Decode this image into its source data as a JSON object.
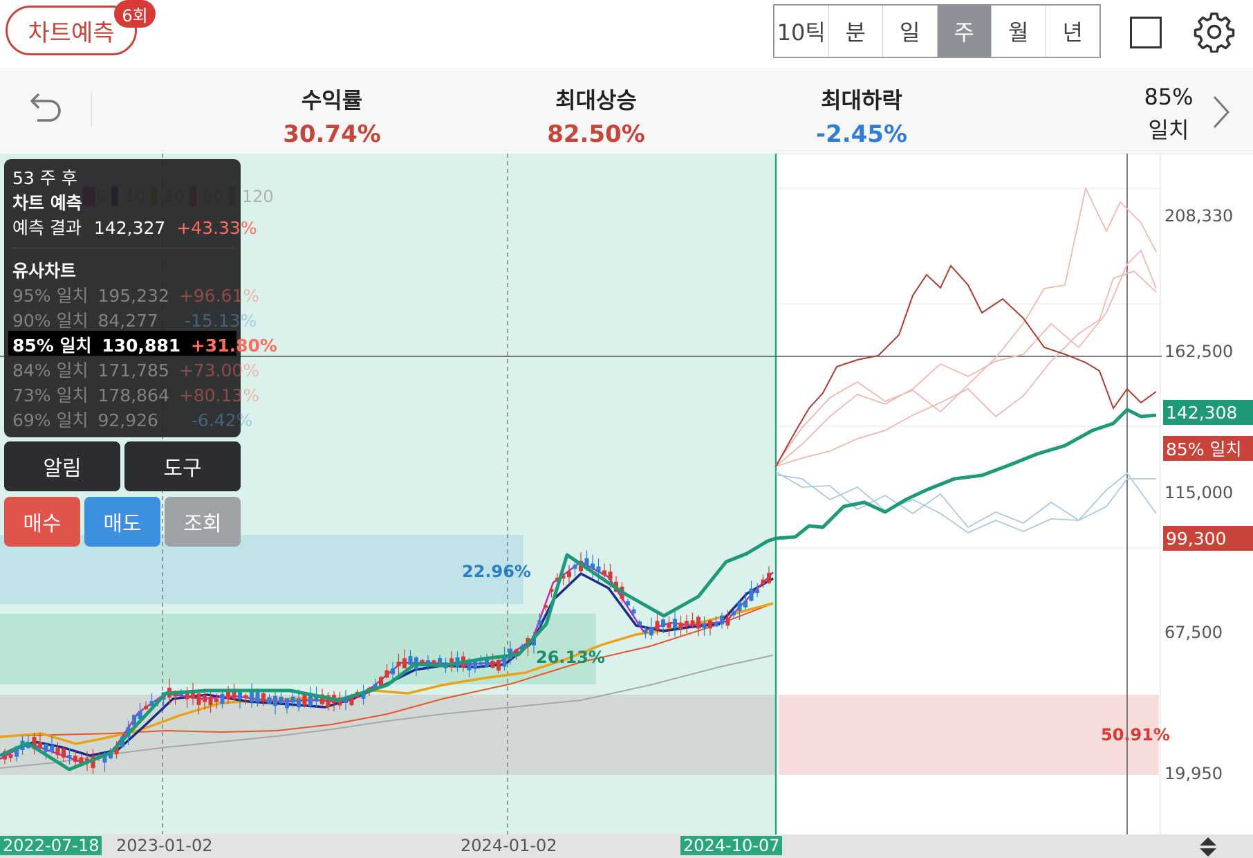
{
  "header": {
    "predict_label": "차트예측",
    "predict_count": "6회",
    "period_tabs": [
      {
        "label": "10틱",
        "active": false
      },
      {
        "label": "분",
        "active": false
      },
      {
        "label": "일",
        "active": false
      },
      {
        "label": "주",
        "active": true
      },
      {
        "label": "월",
        "active": false
      },
      {
        "label": "년",
        "active": false
      }
    ]
  },
  "stats": {
    "return": {
      "label": "수익률",
      "value": "30.74%",
      "color": "#c8443b"
    },
    "max_rise": {
      "label": "최대상승",
      "value": "82.50%",
      "color": "#c8443b"
    },
    "max_fall": {
      "label": "최대하락",
      "value": "-2.45%",
      "color": "#2f7dd6"
    },
    "match_pct": "85%",
    "match_label": "일치"
  },
  "info_panel": {
    "weeks_after": "53 주 후",
    "title": "차트 예측",
    "result_label": "예측 결과",
    "result_value": "142,327",
    "result_pct": "+43.33%",
    "similar_title": "유사차트",
    "similar": [
      {
        "label": "95% 일치",
        "value": "195,232",
        "pct": "+96.61%",
        "dir": "up",
        "selected": false
      },
      {
        "label": "90% 일치",
        "value": "84,277",
        "pct": "-15.13%",
        "dir": "down",
        "selected": false
      },
      {
        "label": "85% 일치",
        "value": "130,881",
        "pct": "+31.80%",
        "dir": "up",
        "selected": true
      },
      {
        "label": "84% 일치",
        "value": "171,785",
        "pct": "+73.00%",
        "dir": "up",
        "selected": false
      },
      {
        "label": "73% 일치",
        "value": "178,864",
        "pct": "+80.13%",
        "dir": "up",
        "selected": false
      },
      {
        "label": "69% 일치",
        "value": "92,926",
        "pct": "-6.42%",
        "dir": "down",
        "selected": false
      }
    ]
  },
  "ma_legend": [
    "5",
    "10",
    "20",
    "60",
    "120"
  ],
  "buttons": {
    "alarm": "알림",
    "tools": "도구",
    "buy": "매수",
    "sell": "매도",
    "inquiry": "조회"
  },
  "chart_data": {
    "type": "candlestick",
    "y_ticks": [
      "208,330",
      "162,500",
      "115,000",
      "67,500",
      "19,950"
    ],
    "x_ticks": [
      "2022-07-18",
      "2023-01-02",
      "2024-01-02",
      "2024-10-07"
    ],
    "current_price_tag": "142,308",
    "match_tag": "85% 일치",
    "last_price_tag": "99,300",
    "zone_labels": [
      "22.96%",
      "26.13%",
      "50.91%"
    ],
    "colors": {
      "up": "#d63b35",
      "down": "#2f7dd6",
      "prediction": "#1f9a78",
      "highlight": "#2aa57e"
    }
  }
}
